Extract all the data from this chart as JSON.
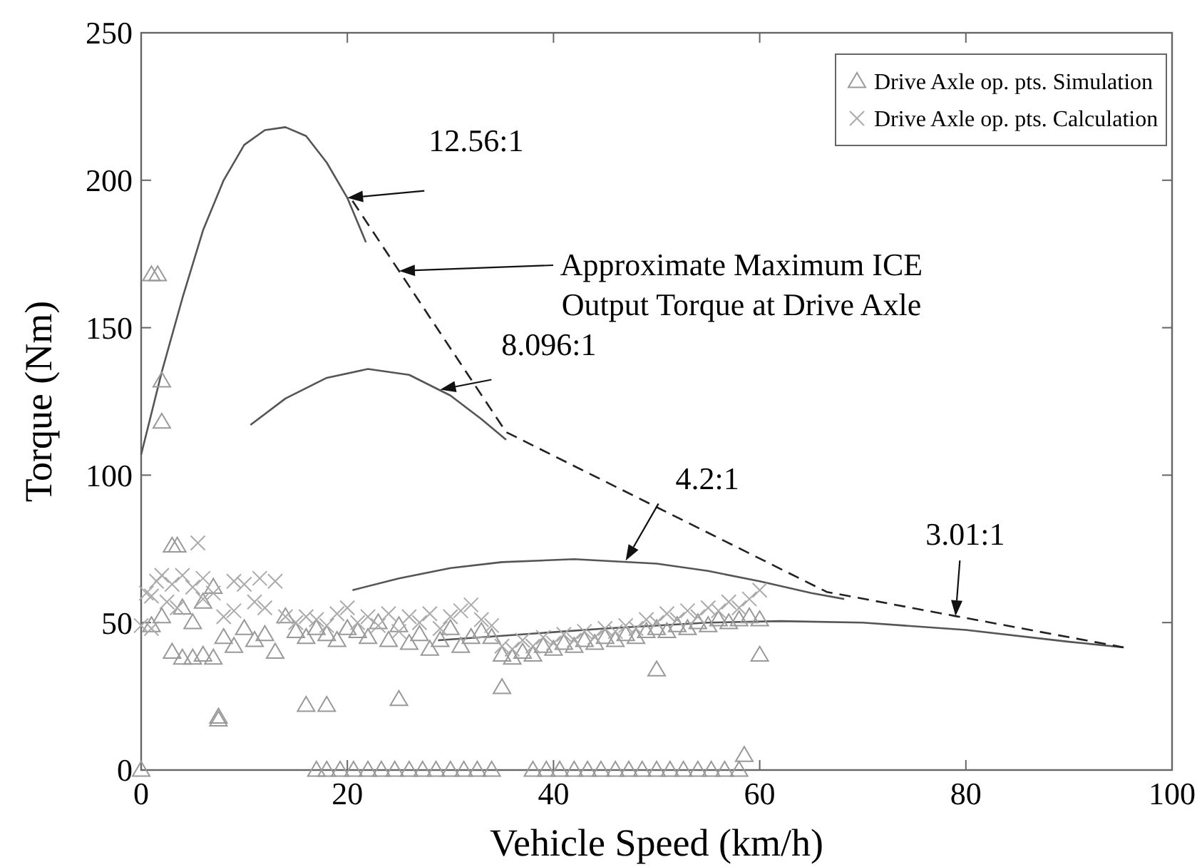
{
  "chart_data": {
    "type": "line",
    "xlabel": "Vehicle Speed (km/h)",
    "ylabel": "Torque (Nm)",
    "xlim": [
      0,
      100
    ],
    "xticks": [
      0,
      20,
      40,
      60,
      80,
      100
    ],
    "ylim": [
      0,
      250
    ],
    "yticks": [
      0,
      50,
      100,
      150,
      200,
      250
    ],
    "grid": false,
    "legend": "top right",
    "series": [
      {
        "type": "line",
        "color": "#555555",
        "marker": "none",
        "line_style": "solid",
        "x": [
          0,
          2,
          4,
          6,
          8,
          10,
          12,
          14,
          16,
          18,
          20,
          21.8
        ],
        "values": [
          107,
          135,
          160,
          183,
          200,
          212,
          217,
          218,
          215,
          206,
          194,
          179
        ]
      },
      {
        "type": "line",
        "color": "#555555",
        "marker": "none",
        "line_style": "solid",
        "x": [
          10.6,
          14,
          18,
          22,
          26,
          30,
          33,
          35.4
        ],
        "values": [
          117,
          126,
          133,
          136,
          134,
          127,
          119,
          112
        ]
      },
      {
        "type": "line",
        "color": "#555555",
        "marker": "none",
        "line_style": "solid",
        "x": [
          20.5,
          25,
          30,
          35,
          42,
          50,
          55,
          60,
          65,
          68.2
        ],
        "values": [
          61,
          65,
          68.5,
          70.5,
          71.5,
          70,
          67.5,
          64,
          60,
          58
        ]
      },
      {
        "type": "line",
        "color": "#555555",
        "marker": "none",
        "line_style": "solid",
        "x": [
          28.8,
          35,
          45,
          55,
          62,
          70,
          80,
          90,
          95.3
        ],
        "values": [
          44,
          45.5,
          48,
          50,
          50.5,
          50,
          47.5,
          43.5,
          41.6
        ]
      },
      {
        "type": "line",
        "color": "#222222",
        "marker": "none",
        "line_style": "dashed",
        "x": [
          20.5,
          35.4,
          66.5,
          79,
          95.3
        ],
        "values": [
          193,
          114.6,
          60.4,
          52.2,
          41.6
        ]
      },
      {
        "type": "scatter",
        "name": "Drive Axle op. pts. Simulation",
        "color": "#999999",
        "marker": "triangle",
        "x": [
          0,
          1,
          1.6,
          2,
          2,
          3,
          3.5,
          1,
          2,
          3,
          4,
          5,
          6,
          7,
          4,
          5,
          6,
          7,
          7.5,
          7.5,
          8,
          9,
          10,
          11,
          12,
          13,
          14,
          15,
          16,
          16,
          17,
          18,
          18,
          19,
          20,
          21,
          22,
          23,
          24,
          25,
          25,
          26,
          27,
          28,
          29,
          30,
          31,
          32,
          33,
          34,
          35,
          35,
          36,
          37,
          38,
          39,
          40,
          41,
          42,
          43,
          44,
          45,
          46,
          47,
          48,
          49,
          50,
          50,
          51,
          52,
          53,
          54,
          55,
          56,
          57,
          58,
          59,
          60,
          60,
          58.5,
          17,
          18,
          19.3,
          20.6,
          22,
          23.3,
          24.6,
          26,
          27.3,
          28.6,
          30,
          31.3,
          32.6,
          34,
          38,
          39.3,
          40.6,
          42,
          43.3,
          44.6,
          46,
          47.3,
          48.6,
          50,
          51.3,
          52.6,
          54,
          55.3,
          56.6,
          58
        ],
        "values": [
          0,
          168,
          168,
          132,
          118,
          76,
          76,
          49,
          52,
          40,
          38,
          38,
          39,
          38,
          55,
          50,
          57,
          62,
          17,
          18,
          45,
          42,
          48,
          44,
          46,
          40,
          52,
          47,
          22,
          45,
          48,
          22,
          46,
          44,
          48,
          47,
          45,
          50,
          44,
          24,
          49,
          43,
          46,
          41,
          44,
          48,
          42,
          45,
          47,
          45,
          28,
          39,
          38,
          40,
          39,
          42,
          41,
          43,
          42,
          44,
          43,
          45,
          44,
          46,
          45,
          47,
          34,
          48,
          47,
          49,
          48,
          50,
          49,
          51,
          50,
          51,
          52,
          39,
          51,
          5,
          0,
          0,
          0,
          0,
          0,
          0,
          0,
          0,
          0,
          0,
          0,
          0,
          0,
          0,
          0,
          0,
          0,
          0,
          0,
          0,
          0,
          0,
          0,
          0,
          0,
          0,
          0,
          0,
          0,
          0
        ]
      },
      {
        "type": "scatter",
        "name": "Drive Axle op. pts. Calculation",
        "color": "#aaaaaa",
        "marker": "cross",
        "x": [
          0,
          1,
          0.5,
          1,
          1.5,
          2,
          2.5,
          3,
          3.5,
          4,
          5,
          5.5,
          6,
          7,
          8,
          9,
          10,
          11,
          12,
          13,
          14,
          15,
          16,
          17,
          18,
          19,
          20,
          21,
          22,
          23,
          24,
          25,
          26,
          27,
          28,
          29,
          30,
          31,
          32,
          33,
          34,
          35,
          36,
          37,
          38,
          39,
          40,
          41,
          42,
          43,
          44,
          45,
          46,
          47,
          48,
          49,
          50,
          51,
          52,
          53,
          54,
          55,
          56,
          57,
          58,
          59,
          60,
          6,
          9,
          11.5
        ],
        "values": [
          49,
          48,
          60,
          59,
          64,
          66,
          57,
          63,
          55,
          66,
          62,
          77,
          58,
          60,
          52,
          54,
          63,
          57,
          55,
          64,
          52,
          50,
          52,
          51,
          49,
          53,
          55,
          50,
          52,
          49,
          53,
          47,
          52,
          50,
          53,
          48,
          52,
          54,
          56,
          51,
          49,
          42,
          41,
          44,
          42,
          45,
          43,
          46,
          44,
          47,
          45,
          48,
          47,
          49,
          48,
          51,
          50,
          53,
          51,
          54,
          52,
          55,
          54,
          57,
          55,
          58,
          61,
          65,
          64,
          65
        ]
      }
    ],
    "annotations": [
      {
        "text": "12.56:1",
        "x": 20,
        "y": 194
      },
      "Approximate Maximum ICE\nOutput Torque at Drive Axle",
      {
        "text": "8.096:1",
        "x": 29,
        "y": 129
      },
      {
        "text": "4.2:1",
        "x": 47,
        "y": 71
      },
      {
        "text": "3.01:1",
        "x": 79,
        "y": 52.2
      }
    ]
  }
}
